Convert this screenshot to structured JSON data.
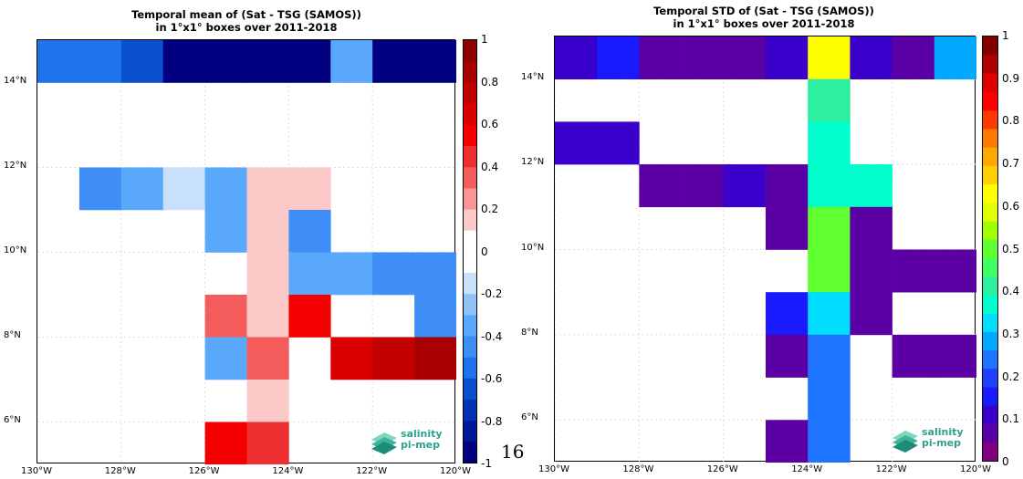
{
  "chart_data": [
    {
      "type": "heatmap",
      "title_line1": "Temporal mean of (Sat - TSG (SAMOS))",
      "title_line2": "in 1°x1° boxes over 2011-2018",
      "x_ticks": [
        "130°W",
        "128°W",
        "126°W",
        "124°W",
        "122°W",
        "120°W"
      ],
      "y_ticks": [
        "14°N",
        "12°N",
        "10°N",
        "8°N",
        "6°N"
      ],
      "xlim": [
        -130,
        -120
      ],
      "ylim": [
        5,
        15
      ],
      "colorbar_ticks": [
        "1",
        "0.8",
        "0.6",
        "0.4",
        "0.2",
        "0",
        "-0.2",
        "-0.4",
        "-0.6",
        "-0.8",
        "-1"
      ],
      "colorbar_range": [
        -1,
        1
      ],
      "colorbar_colors": [
        "#000080",
        "#00199a",
        "#0033b3",
        "#0a50cc",
        "#1f74ec",
        "#3f8ef8",
        "#5aa8fb",
        "#90c2f8",
        "#c8e0fa",
        "#ffffff",
        "#ffffff",
        "#fcc9c9",
        "#fb9595",
        "#f55d5d",
        "#ee2f2f",
        "#f50000",
        "#da0000",
        "#c20000",
        "#a80000",
        "#8c0000"
      ],
      "cells": [
        {
          "lon": -130,
          "lat": 14,
          "value": -0.55
        },
        {
          "lon": -129,
          "lat": 14,
          "value": -0.55
        },
        {
          "lon": -128,
          "lat": 14,
          "value": -0.7
        },
        {
          "lon": -127,
          "lat": 14,
          "value": -1
        },
        {
          "lon": -126,
          "lat": 14,
          "value": -1
        },
        {
          "lon": -125,
          "lat": 14,
          "value": -1
        },
        {
          "lon": -124,
          "lat": 14,
          "value": -1
        },
        {
          "lon": -123,
          "lat": 14,
          "value": -0.35
        },
        {
          "lon": -122,
          "lat": 14,
          "value": -1
        },
        {
          "lon": -121,
          "lat": 14,
          "value": -1
        },
        {
          "lon": -129,
          "lat": 11,
          "value": -0.45
        },
        {
          "lon": -128,
          "lat": 11,
          "value": -0.35
        },
        {
          "lon": -127,
          "lat": 11,
          "value": -0.15
        },
        {
          "lon": -126,
          "lat": 11,
          "value": -0.35
        },
        {
          "lon": -125,
          "lat": 11,
          "value": 0.15
        },
        {
          "lon": -124,
          "lat": 11,
          "value": 0.15
        },
        {
          "lon": -126,
          "lat": 10,
          "value": -0.35
        },
        {
          "lon": -125,
          "lat": 10,
          "value": 0.15
        },
        {
          "lon": -124,
          "lat": 10,
          "value": -0.45
        },
        {
          "lon": -125,
          "lat": 9,
          "value": 0.15
        },
        {
          "lon": -124,
          "lat": 9,
          "value": -0.35
        },
        {
          "lon": -123,
          "lat": 9,
          "value": -0.35
        },
        {
          "lon": -122,
          "lat": 9,
          "value": -0.45
        },
        {
          "lon": -121,
          "lat": 9,
          "value": -0.45
        },
        {
          "lon": -126,
          "lat": 8,
          "value": 0.35
        },
        {
          "lon": -125,
          "lat": 8,
          "value": 0.15
        },
        {
          "lon": -124,
          "lat": 8,
          "value": 0.55
        },
        {
          "lon": -121,
          "lat": 8,
          "value": -0.45
        },
        {
          "lon": -126,
          "lat": 7,
          "value": -0.35
        },
        {
          "lon": -125,
          "lat": 7,
          "value": 0.35
        },
        {
          "lon": -123,
          "lat": 7,
          "value": 0.65
        },
        {
          "lon": -122,
          "lat": 7,
          "value": 0.75
        },
        {
          "lon": -121,
          "lat": 7,
          "value": 0.85
        },
        {
          "lon": -125,
          "lat": 6,
          "value": 0.15
        },
        {
          "lon": -126,
          "lat": 5,
          "value": 0.55
        },
        {
          "lon": -125,
          "lat": 5,
          "value": 0.45
        }
      ]
    },
    {
      "type": "heatmap",
      "title_line1": "Temporal STD of (Sat - TSG (SAMOS))",
      "title_line2": "in 1°x1° boxes over 2011-2018",
      "x_ticks": [
        "130°W",
        "128°W",
        "126°W",
        "124°W",
        "122°W",
        "120°W"
      ],
      "y_ticks": [
        "14°N",
        "12°N",
        "10°N",
        "8°N",
        "6°N"
      ],
      "xlim": [
        -130,
        -120
      ],
      "ylim": [
        5,
        15
      ],
      "colorbar_ticks": [
        "1",
        "0.9",
        "0.8",
        "0.7",
        "0.6",
        "0.5",
        "0.4",
        "0.3",
        "0.2",
        "0.1",
        "0"
      ],
      "colorbar_range": [
        0,
        1
      ],
      "colorbar_colors": [
        "#800080",
        "#5a00a5",
        "#3a00cc",
        "#1a1aff",
        "#2040ff",
        "#1e74ff",
        "#00a8ff",
        "#00ddff",
        "#00ffcc",
        "#2cf0a0",
        "#40ff60",
        "#60ff30",
        "#a0ff00",
        "#e0ff00",
        "#ffff00",
        "#ffd000",
        "#ffa800",
        "#ff7800",
        "#ff3800",
        "#ff0000",
        "#e00000",
        "#b00000",
        "#800000"
      ],
      "cells": [
        {
          "lon": -130,
          "lat": 14,
          "value": 0.1
        },
        {
          "lon": -129,
          "lat": 14,
          "value": 0.15
        },
        {
          "lon": -128,
          "lat": 14,
          "value": 0.08
        },
        {
          "lon": -127,
          "lat": 14,
          "value": 0.05
        },
        {
          "lon": -126,
          "lat": 14,
          "value": 0.05
        },
        {
          "lon": -125,
          "lat": 14,
          "value": 0.1
        },
        {
          "lon": -124,
          "lat": 14,
          "value": 0.64
        },
        {
          "lon": -123,
          "lat": 14,
          "value": 0.1
        },
        {
          "lon": -122,
          "lat": 14,
          "value": 0.05
        },
        {
          "lon": -121,
          "lat": 14,
          "value": 0.3
        },
        {
          "lon": -124,
          "lat": 13,
          "value": 0.42
        },
        {
          "lon": -130,
          "lat": 12,
          "value": 0.1
        },
        {
          "lon": -129,
          "lat": 12,
          "value": 0.1
        },
        {
          "lon": -124,
          "lat": 12,
          "value": 0.37
        },
        {
          "lon": -128,
          "lat": 11,
          "value": 0.05
        },
        {
          "lon": -127,
          "lat": 11,
          "value": 0.05
        },
        {
          "lon": -126,
          "lat": 11,
          "value": 0.1
        },
        {
          "lon": -125,
          "lat": 11,
          "value": 0.05
        },
        {
          "lon": -124,
          "lat": 11,
          "value": 0.37
        },
        {
          "lon": -123,
          "lat": 11,
          "value": 0.37
        },
        {
          "lon": -125,
          "lat": 10,
          "value": 0.05
        },
        {
          "lon": -124,
          "lat": 10,
          "value": 0.48
        },
        {
          "lon": -123,
          "lat": 10,
          "value": 0.05
        },
        {
          "lon": -124,
          "lat": 9,
          "value": 0.48
        },
        {
          "lon": -123,
          "lat": 9,
          "value": 0.05
        },
        {
          "lon": -122,
          "lat": 9,
          "value": 0.05
        },
        {
          "lon": -121,
          "lat": 9,
          "value": 0.05
        },
        {
          "lon": -120,
          "lat": 9,
          "value": 0.05
        },
        {
          "lon": -125,
          "lat": 8,
          "value": 0.17
        },
        {
          "lon": -124,
          "lat": 8,
          "value": 0.33
        },
        {
          "lon": -123,
          "lat": 8,
          "value": 0.05
        },
        {
          "lon": -120,
          "lat": 8,
          "value": 0.05
        },
        {
          "lon": -125,
          "lat": 7,
          "value": 0.05
        },
        {
          "lon": -124,
          "lat": 7,
          "value": 0.22
        },
        {
          "lon": -122,
          "lat": 7,
          "value": 0.05
        },
        {
          "lon": -121,
          "lat": 7,
          "value": 0.05
        },
        {
          "lon": -120,
          "lat": 7,
          "value": 0.1
        },
        {
          "lon": -124,
          "lat": 6,
          "value": 0.22
        },
        {
          "lon": -125,
          "lat": 5,
          "value": 0.08
        },
        {
          "lon": -124,
          "lat": 5,
          "value": 0.22
        }
      ]
    }
  ],
  "logo": {
    "line1": "salinity",
    "line2": "pi-mep"
  },
  "page_number": "16"
}
